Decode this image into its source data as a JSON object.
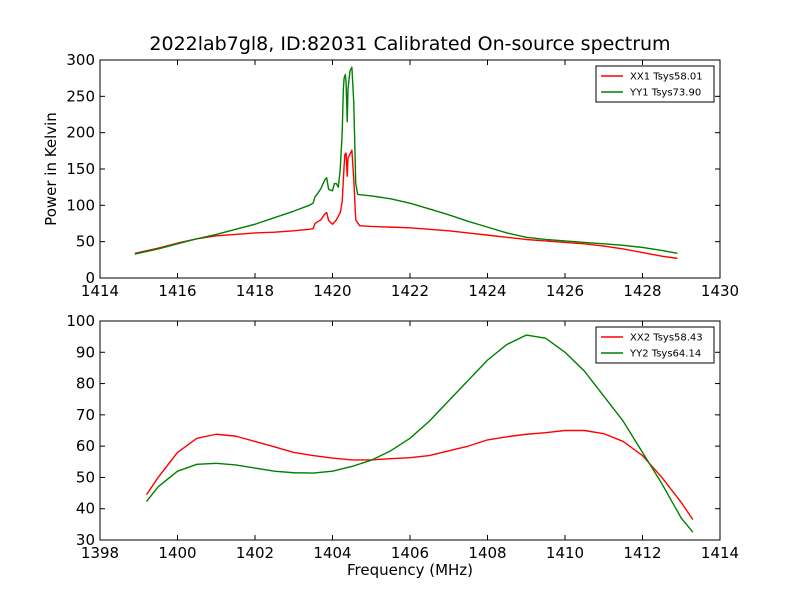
{
  "title": "2022lab7gl8, ID:82031 Calibrated On-source spectrum",
  "chart_data": [
    {
      "type": "line",
      "title": "2022lab7gl8, ID:82031 Calibrated On-source spectrum",
      "xlabel": "",
      "ylabel": "Power in Kelvin",
      "xlim": [
        1414,
        1430
      ],
      "ylim": [
        0,
        300
      ],
      "xticks": [
        "1414",
        "1416",
        "1418",
        "1420",
        "1422",
        "1424",
        "1426",
        "1428",
        "1430"
      ],
      "yticks": [
        "0",
        "50",
        "100",
        "150",
        "200",
        "250",
        "300"
      ],
      "legend_position": "upper right",
      "grid": false,
      "series": [
        {
          "name": "XX1 Tsys58.01",
          "color": "#ff0000",
          "points": [
            [
              1414.9,
              34
            ],
            [
              1415.5,
              41
            ],
            [
              1416.0,
              48
            ],
            [
              1416.5,
              54
            ],
            [
              1417.0,
              58
            ],
            [
              1417.5,
              60
            ],
            [
              1418.0,
              62
            ],
            [
              1418.5,
              63
            ],
            [
              1419.0,
              65
            ],
            [
              1419.4,
              67
            ],
            [
              1419.5,
              68
            ],
            [
              1419.55,
              75
            ],
            [
              1419.6,
              77
            ],
            [
              1419.7,
              80
            ],
            [
              1419.8,
              88
            ],
            [
              1419.85,
              90
            ],
            [
              1419.9,
              79
            ],
            [
              1420.0,
              74
            ],
            [
              1420.1,
              80
            ],
            [
              1420.2,
              90
            ],
            [
              1420.25,
              105
            ],
            [
              1420.3,
              155
            ],
            [
              1420.32,
              170
            ],
            [
              1420.35,
              172
            ],
            [
              1420.38,
              140
            ],
            [
              1420.4,
              165
            ],
            [
              1420.45,
              170
            ],
            [
              1420.5,
              176
            ],
            [
              1420.55,
              135
            ],
            [
              1420.6,
              80
            ],
            [
              1420.7,
              72
            ],
            [
              1421.0,
              71
            ],
            [
              1421.5,
              70
            ],
            [
              1422.0,
              69
            ],
            [
              1422.5,
              67
            ],
            [
              1423.0,
              65
            ],
            [
              1423.5,
              62
            ],
            [
              1424.0,
              59
            ],
            [
              1424.5,
              56
            ],
            [
              1425.0,
              53
            ],
            [
              1425.5,
              51
            ],
            [
              1426.0,
              49
            ],
            [
              1426.5,
              47
            ],
            [
              1427.0,
              44
            ],
            [
              1427.5,
              40
            ],
            [
              1428.0,
              35
            ],
            [
              1428.5,
              30
            ],
            [
              1428.9,
              27
            ]
          ]
        },
        {
          "name": "YY1 Tsys73.90",
          "color": "#008000",
          "points": [
            [
              1414.9,
              33
            ],
            [
              1415.5,
              40
            ],
            [
              1416.0,
              47
            ],
            [
              1416.5,
              54
            ],
            [
              1417.0,
              60
            ],
            [
              1417.5,
              67
            ],
            [
              1418.0,
              74
            ],
            [
              1418.5,
              83
            ],
            [
              1419.0,
              92
            ],
            [
              1419.4,
              100
            ],
            [
              1419.5,
              103
            ],
            [
              1419.55,
              112
            ],
            [
              1419.6,
              115
            ],
            [
              1419.7,
              123
            ],
            [
              1419.8,
              135
            ],
            [
              1419.85,
              138
            ],
            [
              1419.9,
              122
            ],
            [
              1420.0,
              120
            ],
            [
              1420.05,
              130
            ],
            [
              1420.1,
              130
            ],
            [
              1420.15,
              125
            ],
            [
              1420.2,
              150
            ],
            [
              1420.25,
              200
            ],
            [
              1420.28,
              260
            ],
            [
              1420.3,
              275
            ],
            [
              1420.33,
              280
            ],
            [
              1420.35,
              270
            ],
            [
              1420.38,
              215
            ],
            [
              1420.4,
              260
            ],
            [
              1420.45,
              285
            ],
            [
              1420.5,
              290
            ],
            [
              1420.55,
              240
            ],
            [
              1420.6,
              130
            ],
            [
              1420.65,
              115
            ],
            [
              1421.0,
              113
            ],
            [
              1421.5,
              109
            ],
            [
              1422.0,
              103
            ],
            [
              1422.5,
              95
            ],
            [
              1423.0,
              87
            ],
            [
              1423.5,
              78
            ],
            [
              1424.0,
              70
            ],
            [
              1424.5,
              62
            ],
            [
              1425.0,
              56
            ],
            [
              1425.5,
              53
            ],
            [
              1426.0,
              51
            ],
            [
              1426.5,
              49
            ],
            [
              1427.0,
              47
            ],
            [
              1427.5,
              45
            ],
            [
              1428.0,
              42
            ],
            [
              1428.5,
              38
            ],
            [
              1428.9,
              34
            ]
          ]
        }
      ]
    },
    {
      "type": "line",
      "title": "",
      "xlabel": "Frequency (MHz)",
      "ylabel": "",
      "xlim": [
        1398,
        1414
      ],
      "ylim": [
        30,
        100
      ],
      "xticks": [
        "1398",
        "1400",
        "1402",
        "1404",
        "1406",
        "1408",
        "1410",
        "1412",
        "1414"
      ],
      "yticks": [
        "30",
        "40",
        "50",
        "60",
        "70",
        "80",
        "90",
        "100"
      ],
      "legend_position": "upper right",
      "grid": false,
      "series": [
        {
          "name": "XX2 Tsys58.43",
          "color": "#ff0000",
          "points": [
            [
              1399.2,
              44.5
            ],
            [
              1399.5,
              50
            ],
            [
              1400.0,
              58
            ],
            [
              1400.5,
              62.5
            ],
            [
              1401.0,
              63.8
            ],
            [
              1401.5,
              63.2
            ],
            [
              1402.0,
              61.5
            ],
            [
              1402.5,
              59.8
            ],
            [
              1403.0,
              58
            ],
            [
              1403.5,
              57
            ],
            [
              1404.0,
              56.2
            ],
            [
              1404.5,
              55.6
            ],
            [
              1405.0,
              55.6
            ],
            [
              1405.5,
              56
            ],
            [
              1406.0,
              56.3
            ],
            [
              1406.5,
              57
            ],
            [
              1407.0,
              58.5
            ],
            [
              1407.5,
              60
            ],
            [
              1408.0,
              62
            ],
            [
              1408.5,
              63
            ],
            [
              1409.0,
              63.8
            ],
            [
              1409.5,
              64.3
            ],
            [
              1410.0,
              65
            ],
            [
              1410.5,
              65
            ],
            [
              1411.0,
              64
            ],
            [
              1411.5,
              61.5
            ],
            [
              1412.0,
              57
            ],
            [
              1412.5,
              50
            ],
            [
              1413.0,
              42
            ],
            [
              1413.3,
              36.5
            ]
          ]
        },
        {
          "name": "YY2 Tsys64.14",
          "color": "#008000",
          "points": [
            [
              1399.2,
              42.3
            ],
            [
              1399.5,
              47
            ],
            [
              1400.0,
              52
            ],
            [
              1400.5,
              54.2
            ],
            [
              1401.0,
              54.5
            ],
            [
              1401.5,
              54
            ],
            [
              1402.0,
              53
            ],
            [
              1402.5,
              52
            ],
            [
              1403.0,
              51.5
            ],
            [
              1403.5,
              51.4
            ],
            [
              1404.0,
              52
            ],
            [
              1404.5,
              53.5
            ],
            [
              1405.0,
              55.5
            ],
            [
              1405.5,
              58.5
            ],
            [
              1406.0,
              62.5
            ],
            [
              1406.5,
              68
            ],
            [
              1407.0,
              74.5
            ],
            [
              1407.5,
              81
            ],
            [
              1408.0,
              87.5
            ],
            [
              1408.5,
              92.5
            ],
            [
              1409.0,
              95.5
            ],
            [
              1409.5,
              94.5
            ],
            [
              1410.0,
              90
            ],
            [
              1410.5,
              84
            ],
            [
              1411.0,
              76
            ],
            [
              1411.5,
              68
            ],
            [
              1412.0,
              58
            ],
            [
              1412.5,
              48
            ],
            [
              1413.0,
              37
            ],
            [
              1413.3,
              32.5
            ]
          ]
        }
      ]
    }
  ]
}
